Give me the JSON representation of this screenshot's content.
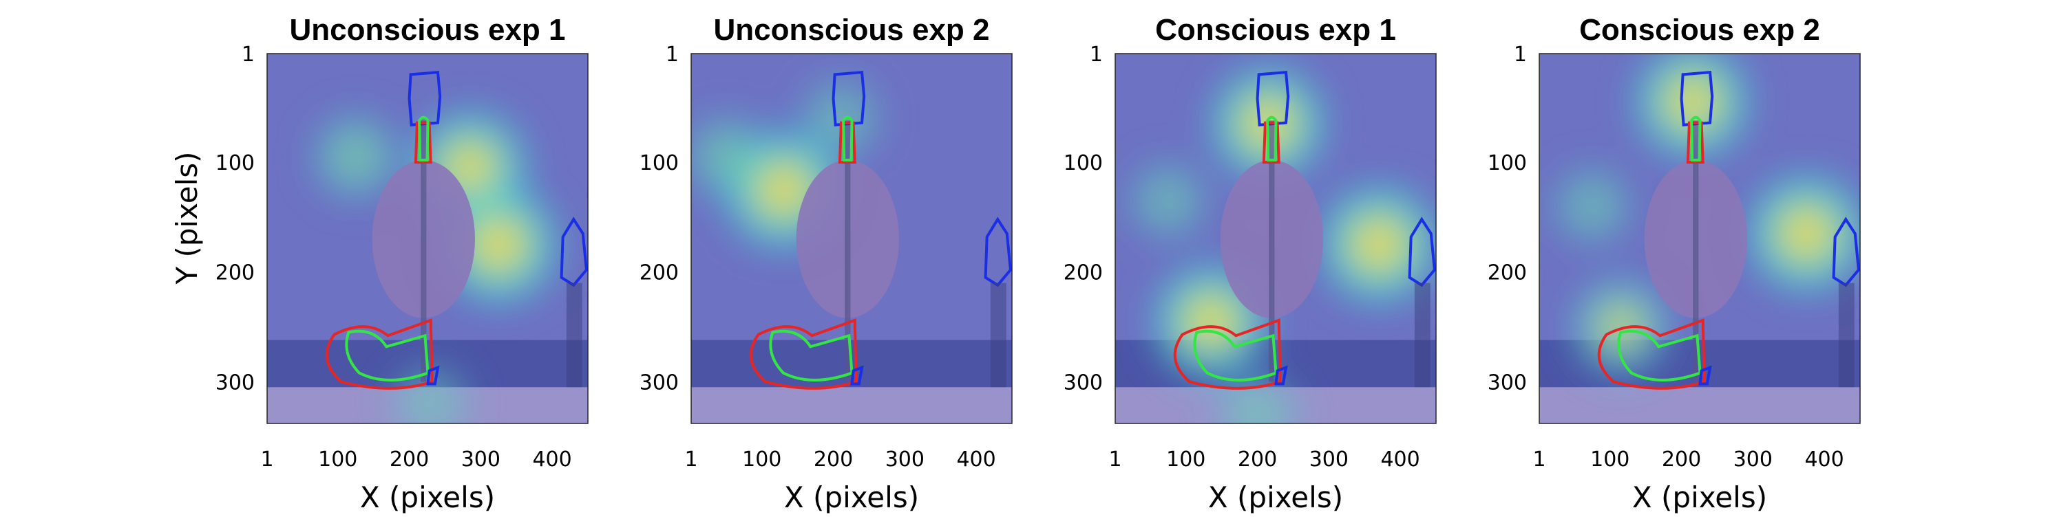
{
  "chart_data": [
    {
      "type": "heatmap",
      "title": "Unconscious exp 1",
      "xlabel": "X (pixels)",
      "ylabel": "Y (pixels)",
      "xlim": [
        1,
        450
      ],
      "ylim": [
        1,
        338
      ],
      "xticks": [
        1,
        100,
        200,
        300,
        400
      ],
      "yticks": [
        1,
        100,
        200,
        300
      ],
      "hotspots": [
        {
          "x": 285,
          "y": 105,
          "intensity": 0.85
        },
        {
          "x": 325,
          "y": 175,
          "intensity": 0.9
        },
        {
          "x": 125,
          "y": 95,
          "intensity": 0.45
        },
        {
          "x": 230,
          "y": 320,
          "intensity": 0.3
        }
      ]
    },
    {
      "type": "heatmap",
      "title": "Unconscious exp 2",
      "xlabel": "X (pixels)",
      "ylabel": "",
      "xlim": [
        1,
        450
      ],
      "ylim": [
        1,
        338
      ],
      "xticks": [
        1,
        100,
        200,
        300,
        400
      ],
      "yticks": [
        1,
        100,
        200,
        300
      ],
      "hotspots": [
        {
          "x": 130,
          "y": 125,
          "intensity": 0.9
        },
        {
          "x": 50,
          "y": 95,
          "intensity": 0.4
        },
        {
          "x": 210,
          "y": 60,
          "intensity": 0.35
        }
      ]
    },
    {
      "type": "heatmap",
      "title": "Conscious exp 1",
      "xlabel": "X (pixels)",
      "ylabel": "",
      "xlim": [
        1,
        450
      ],
      "ylim": [
        1,
        338
      ],
      "xticks": [
        1,
        100,
        200,
        300,
        400
      ],
      "yticks": [
        1,
        100,
        200,
        300
      ],
      "hotspots": [
        {
          "x": 215,
          "y": 65,
          "intensity": 0.85
        },
        {
          "x": 370,
          "y": 175,
          "intensity": 0.9
        },
        {
          "x": 135,
          "y": 245,
          "intensity": 0.85
        },
        {
          "x": 75,
          "y": 135,
          "intensity": 0.35
        },
        {
          "x": 200,
          "y": 330,
          "intensity": 0.35
        }
      ]
    },
    {
      "type": "heatmap",
      "title": "Conscious exp 2",
      "xlabel": "X (pixels)",
      "ylabel": "",
      "xlim": [
        1,
        450
      ],
      "ylim": [
        1,
        338
      ],
      "xticks": [
        1,
        100,
        200,
        300,
        400
      ],
      "yticks": [
        1,
        100,
        200,
        300
      ],
      "hotspots": [
        {
          "x": 215,
          "y": 45,
          "intensity": 0.85
        },
        {
          "x": 375,
          "y": 165,
          "intensity": 0.9
        },
        {
          "x": 115,
          "y": 250,
          "intensity": 0.6
        },
        {
          "x": 75,
          "y": 140,
          "intensity": 0.35
        }
      ]
    }
  ],
  "colors": {
    "background": "#6e72c2",
    "sea": "#4c54a6",
    "ground": "#9a93cb",
    "mask_ellipse": "#8a77b8",
    "roi_blue": "#1a2ee6",
    "roi_red": "#e52626",
    "roi_green": "#33e646"
  }
}
